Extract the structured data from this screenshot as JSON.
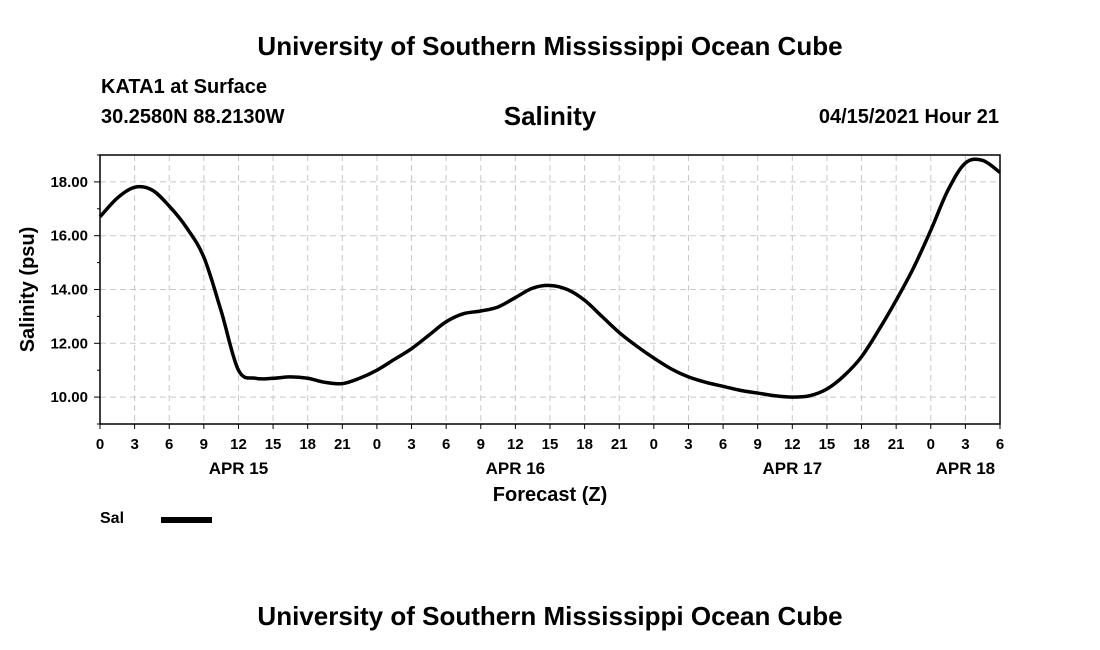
{
  "header": {
    "top_title": "University of Southern Mississippi Ocean Cube",
    "station": "KATA1 at Surface",
    "coordinates": "30.2580N  88.2130W",
    "datetime": "04/15/2021 Hour 21"
  },
  "footer": {
    "bottom_title": "University of Southern Mississippi Ocean Cube"
  },
  "legend": {
    "label": "Sal",
    "color": "#000000"
  },
  "chart_data": {
    "type": "line",
    "title": "Salinity",
    "xlabel": "Forecast (Z)",
    "ylabel": "Salinity (psu)",
    "xlim": [
      0,
      78
    ],
    "ylim": [
      9,
      19
    ],
    "grid": true,
    "x_ticks": [
      0,
      3,
      6,
      9,
      12,
      15,
      18,
      21,
      24,
      27,
      30,
      33,
      36,
      39,
      42,
      45,
      48,
      51,
      54,
      57,
      60,
      63,
      66,
      69,
      72,
      75,
      78
    ],
    "x_tick_labels": [
      "0",
      "3",
      "6",
      "9",
      "12",
      "15",
      "18",
      "21",
      "0",
      "3",
      "6",
      "9",
      "12",
      "15",
      "18",
      "21",
      "0",
      "3",
      "6",
      "9",
      "12",
      "15",
      "18",
      "21",
      "0",
      "3",
      "6"
    ],
    "y_ticks": [
      10,
      12,
      14,
      16,
      18
    ],
    "y_tick_labels": [
      "10.00",
      "12.00",
      "14.00",
      "16.00",
      "18.00"
    ],
    "date_labels": [
      {
        "label": "APR 15",
        "x": 12
      },
      {
        "label": "APR 16",
        "x": 36
      },
      {
        "label": "APR 17",
        "x": 60
      },
      {
        "label": "APR 18",
        "x": 75
      }
    ],
    "series": [
      {
        "name": "Sal",
        "color": "#000000",
        "x": [
          0,
          1.5,
          3,
          4.5,
          6,
          7.5,
          9,
          10.5,
          12,
          13.5,
          15,
          16.5,
          18,
          19.5,
          21,
          22.5,
          24,
          25.5,
          27,
          28.5,
          30,
          31.5,
          33,
          34.5,
          36,
          37.5,
          39,
          40.5,
          42,
          43.5,
          45,
          46.5,
          48,
          49.5,
          51,
          52.5,
          54,
          55.5,
          57,
          58.5,
          60,
          61.5,
          63,
          64.5,
          66,
          67.5,
          69,
          70.5,
          72,
          73.5,
          75,
          76.5,
          78
        ],
        "y": [
          16.7,
          17.4,
          17.8,
          17.7,
          17.1,
          16.3,
          15.2,
          13.2,
          11.0,
          10.7,
          10.7,
          10.75,
          10.7,
          10.55,
          10.5,
          10.7,
          11.0,
          11.4,
          11.8,
          12.3,
          12.8,
          13.1,
          13.2,
          13.35,
          13.7,
          14.05,
          14.15,
          14.0,
          13.6,
          13.0,
          12.4,
          11.9,
          11.45,
          11.05,
          10.75,
          10.55,
          10.4,
          10.25,
          10.15,
          10.05,
          10.0,
          10.05,
          10.3,
          10.8,
          11.5,
          12.5,
          13.6,
          14.8,
          16.2,
          17.7,
          18.7,
          18.8,
          18.35
        ]
      }
    ]
  }
}
